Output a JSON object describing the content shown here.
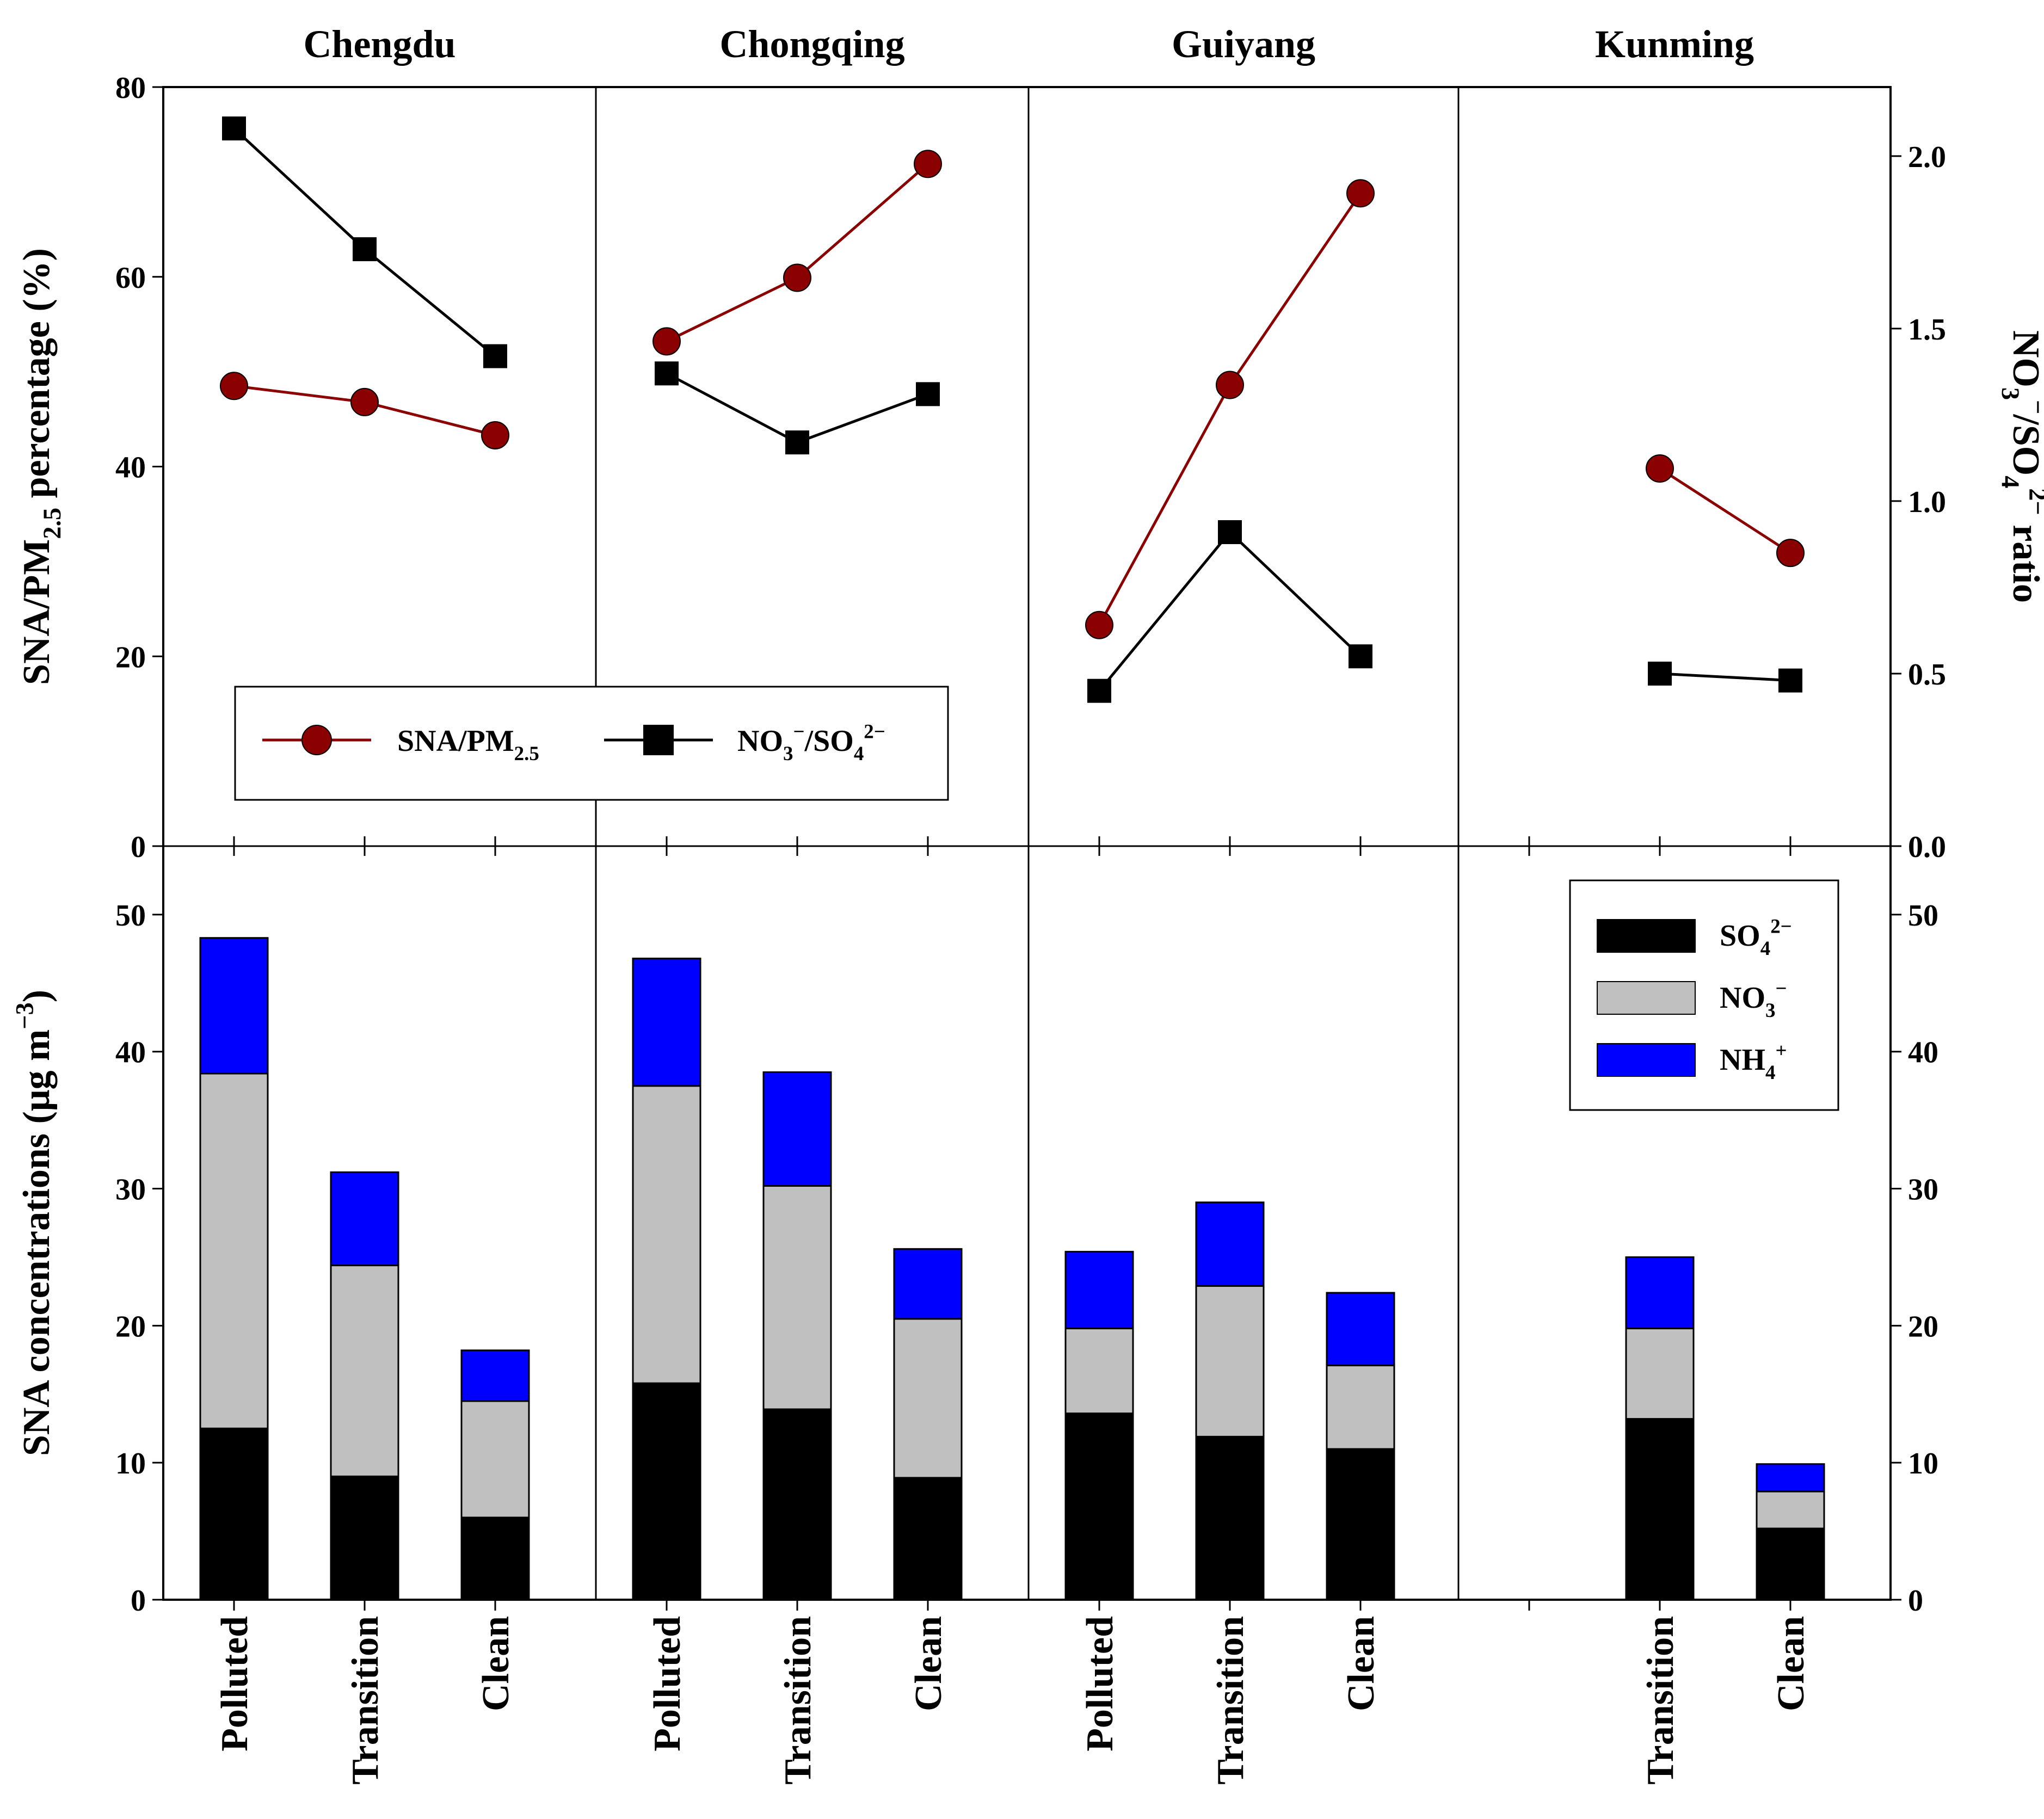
{
  "chart_data": [
    {
      "type": "line",
      "panel": "top",
      "cities": [
        "Chengdu",
        "Chongqing",
        "Guiyang",
        "Kunming"
      ],
      "categories": [
        "Polluted",
        "Transition",
        "Clean"
      ],
      "ylabel_left": {
        "main": "SNA/PM",
        "sub": "2.5",
        "tail": " percentage (%)"
      },
      "ylabel_right": {
        "p1": "NO",
        "s1": "3",
        "sup1": "−",
        "p2": "/SO",
        "s2": "4",
        "sup2": "2−",
        "p3": " ratio"
      },
      "ylim_left": [
        0,
        80
      ],
      "yticks_left": [
        0,
        20,
        40,
        60,
        80
      ],
      "ylim_right": [
        0,
        2.2
      ],
      "yticks_right": [
        "0.0",
        "0.5",
        "1.0",
        "1.5",
        "2.0"
      ],
      "grid": false,
      "legend_position": "bottom-left",
      "series": [
        {
          "name": "SNA/PM2.5",
          "legend": {
            "main": "SNA/PM",
            "sub": "2.5"
          },
          "axis": "left",
          "marker": "circle",
          "color": "#8b0000",
          "values": [
            [
              48.5,
              46.8,
              43.3
            ],
            [
              53.2,
              59.9,
              71.9
            ],
            [
              23.3,
              48.6,
              68.8
            ],
            [
              null,
              39.8,
              30.9
            ]
          ]
        },
        {
          "name": "NO3−/SO42−",
          "legend": {
            "p1": "NO",
            "s1": "3",
            "sup1": "−",
            "p2": "/SO",
            "s2": "4",
            "sup2": "2−"
          },
          "axis": "right",
          "marker": "square",
          "color": "#000000",
          "values": [
            [
              2.08,
              1.73,
              1.42
            ],
            [
              1.37,
              1.17,
              1.31
            ],
            [
              0.45,
              0.91,
              0.55
            ],
            [
              null,
              0.5,
              0.48
            ]
          ]
        }
      ]
    },
    {
      "type": "bar",
      "stacked": true,
      "panel": "bottom",
      "cities": [
        "Chengdu",
        "Chongqing",
        "Guiyang",
        "Kunming"
      ],
      "categories": [
        "Polluted",
        "Transition",
        "Clean"
      ],
      "ylabel": {
        "main": "SNA concentrations (μg m",
        "sup": "−3",
        "tail": ")"
      },
      "ylim": [
        0,
        55
      ],
      "yticks": [
        0,
        10,
        20,
        30,
        40,
        50
      ],
      "grid": false,
      "legend_position": "top-right",
      "series": [
        {
          "name": "SO42−",
          "legend": {
            "main": "SO",
            "sub": "4",
            "sup": "2−"
          },
          "color": "#000000",
          "values": [
            [
              12.5,
              9.0,
              6.0
            ],
            [
              15.8,
              13.9,
              8.9
            ],
            [
              13.6,
              11.9,
              11.0
            ],
            [
              null,
              13.2,
              5.2
            ]
          ]
        },
        {
          "name": "NO3−",
          "legend": {
            "main": "NO",
            "sub": "3",
            "sup": "−"
          },
          "color": "#c0c0c0",
          "values": [
            [
              25.9,
              15.4,
              8.5
            ],
            [
              21.7,
              16.3,
              11.6
            ],
            [
              6.2,
              11.0,
              6.1
            ],
            [
              null,
              6.6,
              2.7
            ]
          ]
        },
        {
          "name": "NH4+",
          "legend": {
            "main": "NH",
            "sub": "4",
            "sup": "+"
          },
          "color": "#0000ff",
          "values": [
            [
              9.9,
              6.8,
              3.7
            ],
            [
              9.3,
              8.3,
              5.1
            ],
            [
              5.6,
              6.1,
              5.3
            ],
            [
              null,
              5.2,
              2.0
            ]
          ]
        }
      ]
    }
  ]
}
